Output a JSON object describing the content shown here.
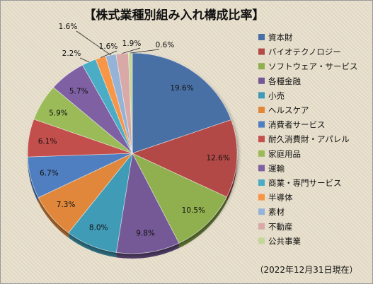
{
  "chart_data": {
    "type": "pie",
    "title": "【株式業種別組み入れ構成比率】",
    "note": "（2022年12月31日現在）",
    "legend_position": "right",
    "slices": [
      {
        "name": "資本財",
        "value": 19.6,
        "label": "19.6%",
        "color": "#4a6fa5"
      },
      {
        "name": "バイオテクノロジー",
        "value": 12.6,
        "label": "12.6%",
        "color": "#b24a47"
      },
      {
        "name": "ソフトウェア・サービス",
        "value": 10.5,
        "label": "10.5%",
        "color": "#90b04f"
      },
      {
        "name": "各種金融",
        "value": 9.8,
        "label": "9.8%",
        "color": "#745896"
      },
      {
        "name": "小売",
        "value": 8.0,
        "label": "8.0%",
        "color": "#3f9bb6"
      },
      {
        "name": "ヘルスケア",
        "value": 7.3,
        "label": "7.3%",
        "color": "#e0873a"
      },
      {
        "name": "消費者サービス",
        "value": 6.7,
        "label": "6.7%",
        "color": "#4f7fc0"
      },
      {
        "name": "耐久消費財・アパレル",
        "value": 6.1,
        "label": "6.1%",
        "color": "#c3504d"
      },
      {
        "name": "家庭用品",
        "value": 5.9,
        "label": "5.9%",
        "color": "#9bbb59"
      },
      {
        "name": "運輸",
        "value": 5.7,
        "label": "5.7%",
        "color": "#7e61a3"
      },
      {
        "name": "商業・専門サービス",
        "value": 2.2,
        "label": "2.2%",
        "color": "#4bacc6"
      },
      {
        "name": "半導体",
        "value": 1.6,
        "label": "1.6%",
        "color": "#f79646"
      },
      {
        "name": "素材",
        "value": 1.6,
        "label": "1.6%",
        "color": "#95b3d7"
      },
      {
        "name": "不動産",
        "value": 1.9,
        "label": "1.9%",
        "color": "#d9a9a7"
      },
      {
        "name": "公共事業",
        "value": 0.6,
        "label": "0.6%",
        "color": "#c4d79b"
      }
    ]
  }
}
